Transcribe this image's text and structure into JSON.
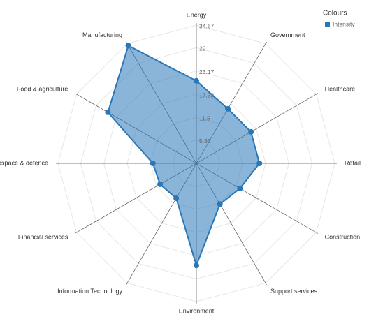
{
  "chart_data": {
    "type": "radar",
    "categories": [
      "Energy",
      "Government",
      "Healthcare",
      "Retail",
      "Construction",
      "Support services",
      "Environment",
      "Information Technology",
      "Financial services",
      "Aerospace & defence",
      "Food & agriculture",
      "Manufacturing"
    ],
    "series": [
      {
        "name": "Intensity",
        "color": "#2a77b8",
        "values": [
          20.7,
          15.8,
          15.8,
          15.8,
          12.6,
          11.8,
          25.6,
          10.1,
          10.5,
          10.9,
          25.6,
          34.1
        ]
      }
    ],
    "ylim": [
      0,
      34.67
    ],
    "yticks": [
      5.83,
      11.5,
      17.33,
      23.17,
      29,
      34.67
    ],
    "legend_title": "Colours",
    "legend": "top-right",
    "grid": true
  }
}
